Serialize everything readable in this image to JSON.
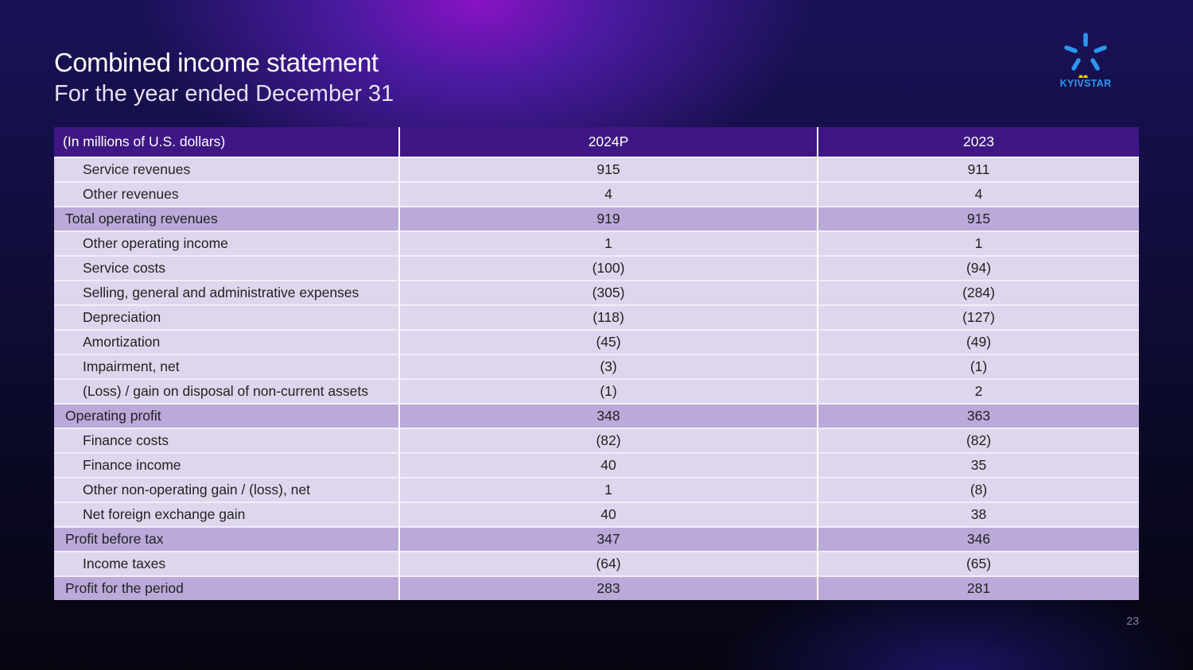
{
  "title": "Combined income statement",
  "subtitle": "For the year ended December 31",
  "logo": {
    "text": "KYIVSTAR",
    "color": "#2b97f2",
    "dot_color": "#f5d20a"
  },
  "table": {
    "headers": [
      "(In millions of U.S. dollars)",
      "2024P",
      "2023"
    ],
    "rows": [
      {
        "label": "Service revenues",
        "v2024": "915",
        "v2023": "911",
        "total": false
      },
      {
        "label": "Other revenues",
        "v2024": "4",
        "v2023": "4",
        "total": false
      },
      {
        "label": "Total operating revenues",
        "v2024": "919",
        "v2023": "915",
        "total": true
      },
      {
        "label": "Other operating income",
        "v2024": "1",
        "v2023": "1",
        "total": false
      },
      {
        "label": "Service costs",
        "v2024": "(100)",
        "v2023": "(94)",
        "total": false
      },
      {
        "label": "Selling, general and administrative expenses",
        "v2024": "(305)",
        "v2023": "(284)",
        "total": false
      },
      {
        "label": "Depreciation",
        "v2024": "(118)",
        "v2023": "(127)",
        "total": false
      },
      {
        "label": "Amortization",
        "v2024": "(45)",
        "v2023": "(49)",
        "total": false
      },
      {
        "label": "Impairment, net",
        "v2024": "(3)",
        "v2023": "(1)",
        "total": false
      },
      {
        "label": "(Loss) / gain on disposal of non-current assets",
        "v2024": "(1)",
        "v2023": "2",
        "total": false
      },
      {
        "label": "Operating profit",
        "v2024": "348",
        "v2023": "363",
        "total": true
      },
      {
        "label": "Finance costs",
        "v2024": "(82)",
        "v2023": "(82)",
        "total": false
      },
      {
        "label": "Finance income",
        "v2024": "40",
        "v2023": "35",
        "total": false
      },
      {
        "label": "Other non-operating gain / (loss), net",
        "v2024": "1",
        "v2023": "(8)",
        "total": false
      },
      {
        "label": "Net foreign exchange gain",
        "v2024": "40",
        "v2023": "38",
        "total": false
      },
      {
        "label": "Profit before tax",
        "v2024": "347",
        "v2023": "346",
        "total": true
      },
      {
        "label": "Income taxes",
        "v2024": "(64)",
        "v2023": "(65)",
        "total": false
      },
      {
        "label": "Profit for the period",
        "v2024": "283",
        "v2023": "281",
        "total": true
      }
    ]
  },
  "page_number": "23"
}
